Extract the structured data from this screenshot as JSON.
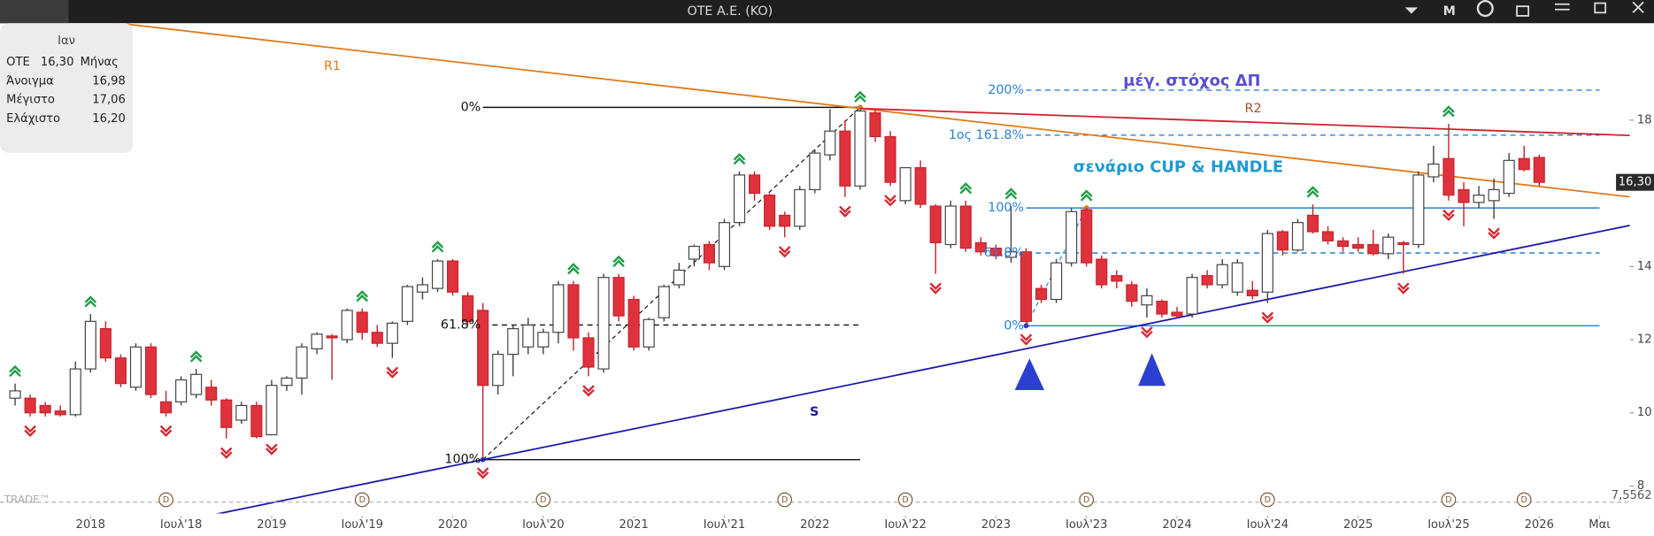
{
  "header": {
    "title": "OTE A.E. (KO)",
    "mode": "M"
  },
  "info_panel": {
    "period_label": "Ιαν",
    "symbol": "OTE",
    "price": "16,30",
    "interval": "Μήνας",
    "rows": [
      [
        "Άνοιγμα",
        "16,98"
      ],
      [
        "Μέγιστο",
        "17,06"
      ],
      [
        "Ελάχιστο",
        "16,20"
      ]
    ]
  },
  "watermark": "TRADE™",
  "chart_data": {
    "type": "candlestick",
    "x": [
      "2017-08",
      "2017-09",
      "2017-10",
      "2017-11",
      "2017-12",
      "2018-01",
      "2018-02",
      "2018-03",
      "2018-04",
      "2018-05",
      "2018-06",
      "2018-07",
      "2018-08",
      "2018-09",
      "2018-10",
      "2018-11",
      "2018-12",
      "2019-01",
      "2019-02",
      "2019-03",
      "2019-04",
      "2019-05",
      "2019-06",
      "2019-07",
      "2019-08",
      "2019-09",
      "2019-10",
      "2019-11",
      "2019-12",
      "2020-01",
      "2020-02",
      "2020-03",
      "2020-04",
      "2020-05",
      "2020-06",
      "2020-07",
      "2020-08",
      "2020-09",
      "2020-10",
      "2020-11",
      "2020-12",
      "2021-01",
      "2021-02",
      "2021-03",
      "2021-04",
      "2021-05",
      "2021-06",
      "2021-07",
      "2021-08",
      "2021-09",
      "2021-10",
      "2021-11",
      "2021-12",
      "2022-01",
      "2022-02",
      "2022-03",
      "2022-04",
      "2022-05",
      "2022-06",
      "2022-07",
      "2022-08",
      "2022-09",
      "2022-10",
      "2022-11",
      "2022-12",
      "2023-01",
      "2023-02",
      "2023-03",
      "2023-04",
      "2023-05",
      "2023-06",
      "2023-07",
      "2023-08",
      "2023-09",
      "2023-10",
      "2023-11",
      "2023-12",
      "2024-01",
      "2024-02",
      "2024-03",
      "2024-04",
      "2024-05",
      "2024-06",
      "2024-07",
      "2024-08",
      "2024-09",
      "2024-10",
      "2024-11",
      "2024-12",
      "2025-01",
      "2025-02",
      "2025-03",
      "2025-04",
      "2025-05",
      "2025-06",
      "2025-07",
      "2025-08",
      "2025-09",
      "2025-10",
      "2025-11",
      "2025-12",
      "2026-01"
    ],
    "open": [
      10.4,
      10.4,
      10.2,
      10.05,
      9.95,
      11.2,
      12.3,
      11.5,
      10.7,
      11.8,
      10.3,
      10.3,
      10.5,
      10.7,
      10.35,
      9.8,
      10.2,
      9.4,
      10.75,
      10.95,
      11.75,
      12.1,
      12.0,
      12.75,
      12.2,
      11.9,
      12.5,
      13.3,
      13.4,
      14.15,
      13.2,
      12.8,
      10.75,
      11.6,
      11.8,
      11.8,
      12.2,
      13.5,
      12.05,
      11.2,
      13.7,
      13.1,
      11.8,
      12.6,
      13.5,
      14.2,
      14.6,
      14.0,
      15.2,
      16.5,
      15.95,
      15.4,
      15.1,
      16.1,
      17.05,
      17.7,
      16.2,
      18.2,
      17.55,
      15.8,
      16.7,
      15.65,
      14.6,
      15.65,
      14.65,
      14.5,
      14.25,
      14.4,
      13.4,
      13.1,
      14.1,
      15.55,
      14.2,
      13.75,
      13.5,
      12.95,
      13.05,
      12.75,
      12.7,
      13.75,
      13.5,
      13.3,
      13.35,
      13.3,
      14.95,
      14.45,
      15.4,
      14.95,
      14.7,
      14.6,
      14.6,
      14.35,
      14.65,
      14.6,
      16.45,
      16.95,
      16.1,
      15.75,
      15.8,
      16.0,
      16.95,
      16.98
    ],
    "high": [
      10.8,
      10.5,
      10.3,
      10.2,
      11.4,
      12.7,
      12.5,
      11.6,
      11.9,
      11.9,
      10.6,
      11.0,
      11.2,
      10.9,
      10.4,
      10.3,
      10.3,
      10.9,
      11.0,
      11.9,
      12.2,
      12.15,
      12.85,
      12.85,
      12.4,
      12.5,
      13.5,
      13.7,
      14.2,
      14.2,
      13.3,
      13.0,
      11.7,
      12.4,
      12.6,
      12.3,
      13.6,
      13.6,
      12.2,
      13.8,
      13.8,
      13.2,
      12.6,
      13.5,
      14.1,
      14.6,
      14.7,
      15.3,
      16.6,
      16.6,
      16.0,
      15.5,
      16.2,
      17.2,
      18.3,
      18.0,
      18.3,
      18.3,
      17.7,
      16.7,
      16.9,
      15.7,
      15.8,
      15.8,
      14.8,
      14.6,
      15.65,
      14.5,
      13.5,
      14.2,
      15.6,
      15.6,
      14.3,
      13.9,
      13.6,
      13.4,
      13.1,
      12.9,
      13.8,
      13.9,
      14.2,
      14.2,
      13.6,
      15.0,
      15.0,
      15.3,
      15.7,
      15.1,
      14.8,
      14.8,
      15.0,
      14.9,
      14.7,
      16.6,
      17.3,
      17.9,
      16.3,
      16.2,
      16.4,
      17.1,
      17.3,
      17.06
    ],
    "low": [
      10.2,
      9.9,
      9.9,
      9.9,
      9.9,
      11.1,
      11.4,
      10.7,
      10.6,
      10.4,
      9.9,
      10.2,
      10.4,
      10.2,
      9.3,
      9.7,
      9.3,
      9.4,
      10.6,
      10.5,
      11.6,
      10.9,
      11.9,
      12.0,
      11.8,
      11.5,
      12.4,
      13.1,
      13.3,
      13.2,
      12.4,
      8.75,
      10.5,
      11.0,
      11.6,
      11.6,
      11.9,
      11.7,
      11.0,
      11.1,
      12.5,
      11.7,
      11.7,
      12.5,
      13.4,
      14.0,
      13.9,
      13.9,
      15.1,
      15.8,
      15.0,
      14.8,
      15.0,
      16.0,
      16.9,
      15.9,
      16.1,
      17.4,
      16.2,
      15.7,
      15.6,
      13.8,
      14.5,
      14.4,
      14.3,
      14.2,
      14.1,
      12.4,
      13.0,
      13.0,
      14.0,
      14.0,
      13.4,
      13.4,
      12.9,
      12.6,
      12.6,
      12.6,
      12.6,
      13.4,
      13.4,
      13.2,
      13.1,
      13.0,
      14.3,
      14.4,
      14.9,
      14.6,
      14.4,
      14.4,
      14.3,
      14.2,
      13.8,
      14.5,
      16.3,
      15.8,
      15.1,
      15.6,
      15.3,
      15.9,
      16.6,
      16.2
    ],
    "close": [
      10.6,
      10.0,
      10.0,
      9.95,
      11.2,
      12.5,
      11.5,
      10.8,
      11.8,
      10.5,
      10.0,
      10.9,
      11.05,
      10.35,
      9.6,
      10.2,
      9.35,
      10.75,
      10.95,
      11.8,
      12.15,
      12.05,
      12.8,
      12.2,
      11.9,
      12.45,
      13.45,
      13.5,
      14.15,
      13.3,
      12.5,
      10.75,
      11.6,
      12.3,
      12.4,
      12.2,
      13.5,
      12.05,
      11.25,
      13.7,
      12.65,
      11.8,
      12.55,
      13.45,
      13.9,
      14.55,
      14.1,
      15.2,
      16.5,
      16.0,
      15.1,
      15.1,
      16.1,
      17.1,
      17.7,
      16.2,
      18.25,
      17.55,
      16.3,
      16.7,
      15.7,
      14.65,
      15.65,
      14.5,
      14.4,
      14.3,
      14.4,
      12.5,
      13.1,
      14.1,
      15.5,
      14.1,
      13.5,
      13.6,
      13.05,
      13.2,
      12.7,
      12.65,
      13.7,
      13.5,
      14.05,
      14.1,
      13.2,
      14.9,
      14.45,
      15.2,
      14.95,
      14.7,
      14.55,
      14.5,
      14.35,
      14.8,
      14.6,
      16.5,
      16.8,
      15.95,
      15.75,
      15.95,
      16.1,
      16.9,
      16.65,
      16.3
    ],
    "up_color": "#ffffff",
    "down_color": "#e0323c",
    "xlim": [
      "2017-07",
      "2026-07"
    ],
    "xticks": [
      {
        "value": "2018-01",
        "label": "2018"
      },
      {
        "value": "2018-07",
        "label": "Ιουλ'18"
      },
      {
        "value": "2019-01",
        "label": "2019"
      },
      {
        "value": "2019-07",
        "label": "Ιουλ'19"
      },
      {
        "value": "2020-01",
        "label": "2020"
      },
      {
        "value": "2020-07",
        "label": "Ιουλ'20"
      },
      {
        "value": "2021-01",
        "label": "2021"
      },
      {
        "value": "2021-07",
        "label": "Ιουλ'21"
      },
      {
        "value": "2022-01",
        "label": "2022"
      },
      {
        "value": "2022-07",
        "label": "Ιουλ'22"
      },
      {
        "value": "2023-01",
        "label": "2023"
      },
      {
        "value": "2023-07",
        "label": "Ιουλ'23"
      },
      {
        "value": "2024-01",
        "label": "2024"
      },
      {
        "value": "2024-07",
        "label": "Ιουλ'24"
      },
      {
        "value": "2025-01",
        "label": "2025"
      },
      {
        "value": "2025-07",
        "label": "Ιουλ'25"
      },
      {
        "value": "2026-01",
        "label": "2026"
      },
      {
        "value": "2026-05",
        "label": "Μαι"
      }
    ],
    "ylim": [
      7.25,
      20.65
    ],
    "yticks": [
      8,
      10,
      12,
      14,
      18
    ],
    "last_price": {
      "value": 16.3,
      "label": "16,30"
    },
    "bottom_marker": {
      "value": 7.5562,
      "label": "7,5562"
    },
    "trendlines": [
      {
        "name": "R1",
        "color": "#e07a1a",
        "extend": "both",
        "points": [
          [
            "2022-04",
            18.32
          ],
          [
            "2026-06",
            15.95
          ]
        ]
      },
      {
        "name": "R2",
        "color": "#d01f2e",
        "extend": "right",
        "points": [
          [
            "2022-04",
            18.32
          ],
          [
            "2025-06",
            17.77
          ]
        ]
      },
      {
        "name": "S",
        "color": "#1a1aa8",
        "extend": "both",
        "points": [
          [
            "2020-03",
            8.72
          ],
          [
            "2025-09",
            14.28
          ]
        ]
      }
    ],
    "fibonacci": [
      {
        "color": "#111111",
        "start": "2020-03",
        "end": "2022-04",
        "diagonal": [
          [
            "2020-03",
            8.72
          ],
          [
            "2022-04",
            18.35
          ]
        ],
        "levels": [
          {
            "value": 18.35,
            "label": "0%",
            "dashed": false
          },
          {
            "value": 12.4,
            "label": "61.8%",
            "dashed": true
          },
          {
            "value": 8.72,
            "label": "100%",
            "dashed": false
          }
        ]
      },
      {
        "color": "#2a7fd4",
        "start": "2023-03",
        "end": "2026-05",
        "diagonal": [
          [
            "2023-03",
            12.38
          ],
          [
            "2023-07",
            15.6
          ]
        ],
        "levels": [
          {
            "value": 18.82,
            "label": "200%",
            "dashed": true
          },
          {
            "value": 17.59,
            "label": "1ος 161.8%",
            "dashed": true
          },
          {
            "value": 15.6,
            "label": "100%",
            "dashed": false
          },
          {
            "value": 14.37,
            "label": "61.8%",
            "dashed": true
          },
          {
            "value": 12.38,
            "label": "0%",
            "dashed": false
          }
        ]
      }
    ],
    "annotations": [
      {
        "text": "R1",
        "color": "#e07a1a"
      },
      {
        "text": "R2",
        "color": "#a0522d"
      },
      {
        "text": "S",
        "color": "#1a1aa8"
      },
      {
        "text": "μέγ. στόχος ΔΠ",
        "color": "#5a4fcf"
      },
      {
        "text": "σενάριο CUP & HANDLE",
        "color": "#1e9ad6"
      }
    ],
    "fractals_up": [
      "2017-08",
      "2018-01",
      "2018-08",
      "2019-07",
      "2019-12",
      "2020-09",
      "2020-12",
      "2021-08",
      "2022-04",
      "2022-11",
      "2023-02",
      "2023-07",
      "2024-10",
      "2025-07"
    ],
    "fractals_down": [
      "2017-09",
      "2018-06",
      "2018-10",
      "2019-01",
      "2019-09",
      "2020-03",
      "2020-10",
      "2021-11",
      "2022-03",
      "2022-06",
      "2022-09",
      "2023-03",
      "2023-11",
      "2024-07",
      "2025-04",
      "2025-07",
      "2025-10"
    ],
    "dividends": [
      "2018-06",
      "2019-07",
      "2020-07",
      "2021-11",
      "2022-07",
      "2023-07",
      "2024-07",
      "2025-07",
      "2025-12"
    ],
    "dividend_label": "D"
  }
}
